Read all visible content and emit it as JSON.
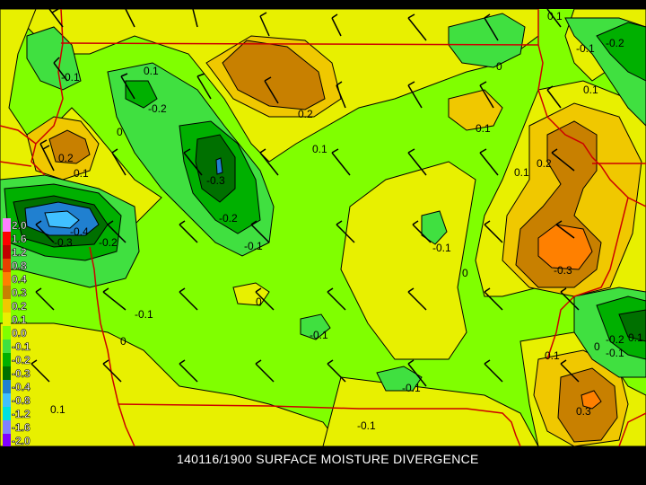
{
  "title": "140116/1900 SURFACE MOISTURE DIVERGENCE",
  "colors": {
    "background": "#000000",
    "neutral": "#80ff00",
    "pos_0_1": "#e8f000",
    "pos_0_2": "#f0c800",
    "pos_0_3": "#c88000",
    "pos_0_4": "#ff8000",
    "pos_0_8": "#e84000",
    "neg_0_1": "#40e040",
    "neg_0_2": "#00b000",
    "neg_0_3": "#007000",
    "neg_0_4": "#2080d0",
    "neg_0_8": "#40c0ff",
    "border": "#cc0000",
    "contour": "#000000",
    "wind_barb": "#000000"
  },
  "legend": {
    "entries": [
      {
        "label": "2.0",
        "color": "#ff80ff"
      },
      {
        "label": "1.6",
        "color": "#ff0000"
      },
      {
        "label": "1.2",
        "color": "#c00000"
      },
      {
        "label": "0.8",
        "color": "#e84000"
      },
      {
        "label": "0.4",
        "color": "#ff8000"
      },
      {
        "label": "0.3",
        "color": "#c88000"
      },
      {
        "label": "0.2",
        "color": "#f0c800"
      },
      {
        "label": "0.1",
        "color": "#e8f000"
      },
      {
        "label": "0.0",
        "color": "#80ff00"
      },
      {
        "label": "-0.1",
        "color": "#40e040"
      },
      {
        "label": "-0.2",
        "color": "#00b000"
      },
      {
        "label": "-0.3",
        "color": "#007000"
      },
      {
        "label": "-0.4",
        "color": "#2080d0"
      },
      {
        "label": "-0.8",
        "color": "#40c0ff"
      },
      {
        "label": "-1.2",
        "color": "#00e0e0"
      },
      {
        "label": "-1.6",
        "color": "#8080ff"
      },
      {
        "label": "-2.0",
        "color": "#8000ff"
      }
    ]
  },
  "contour_labels": [
    "0.1",
    "-0.1",
    "-0.2",
    "0",
    "-0.1",
    "-0.2",
    "0.2",
    "0.1",
    "0.1",
    "0.2",
    "0.1",
    "-0.3",
    "-0.2",
    "-0.1",
    "-0.3",
    "-0.4",
    "-0.2",
    "0.1",
    "0",
    "-0.1",
    "0.2",
    "0.1",
    "-0.1",
    "0",
    "-0.3",
    "0",
    "-0.1",
    "0",
    "-0.1",
    "0.1",
    "0.1",
    "-0.1",
    "-0.2",
    "0.1",
    "0",
    "-0.1",
    "0.1",
    "0.3"
  ],
  "wind_barbs_count": 56
}
